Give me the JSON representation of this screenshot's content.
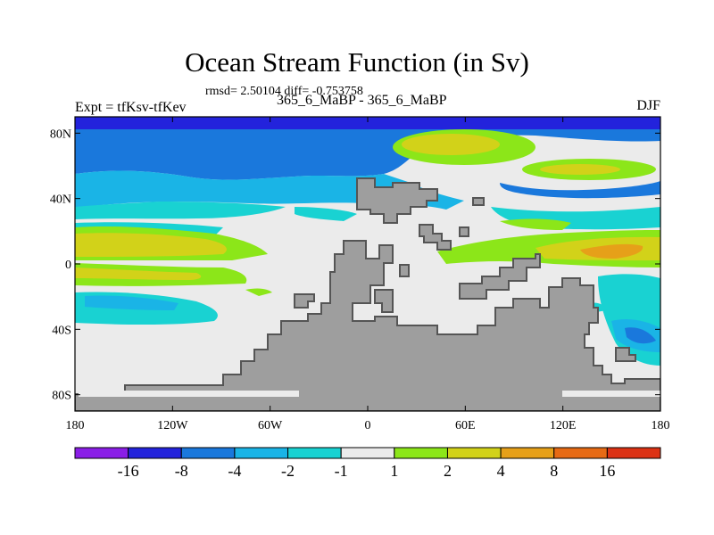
{
  "title": "Ocean Stream Function (in Sv)",
  "stats": "rmsd= 2.50104 diff= -0.753758",
  "subtitle_left": "Expt = tfKsv-tfKev",
  "subtitle_center": "365_6_MaBP - 365_6_MaBP",
  "subtitle_right": "DJF",
  "axes": {
    "x_ticks": [
      "180",
      "120W",
      "60W",
      "0",
      "60E",
      "120E",
      "180"
    ],
    "y_ticks": [
      "80N",
      "40N",
      "0",
      "40S",
      "80S"
    ]
  },
  "colorbar": {
    "labels": [
      "-16",
      "-8",
      "-4",
      "-2",
      "-1",
      "1",
      "2",
      "4",
      "8",
      "16"
    ],
    "colors": [
      "#8a1ee6",
      "#2323dc",
      "#1a78dc",
      "#1ab4e6",
      "#19d2d2",
      "#ebebeb",
      "#8ce619",
      "#d2d219",
      "#e6a019",
      "#e66a14",
      "#dc3214"
    ]
  },
  "map_colors": {
    "land": "#9e9e9e",
    "land_edge": "#555555",
    "neutral": "#ebebeb"
  }
}
